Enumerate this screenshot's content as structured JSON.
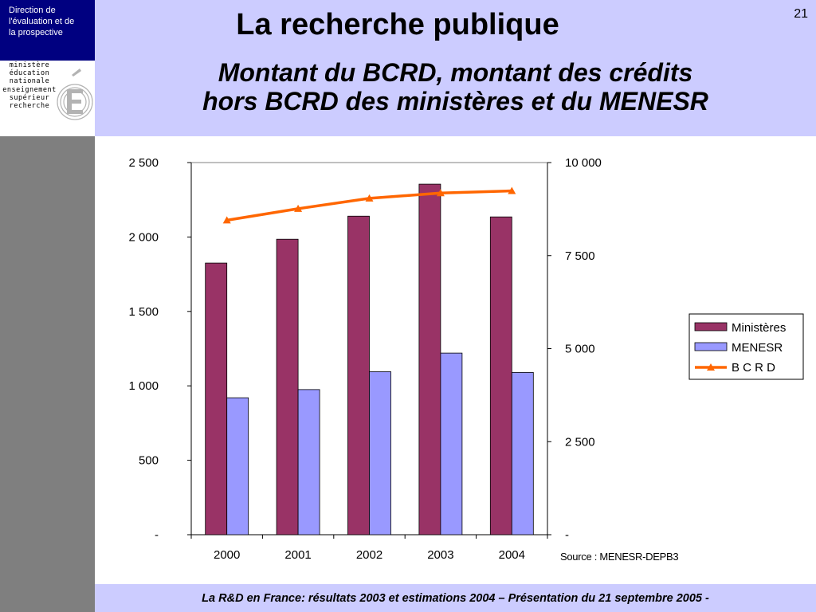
{
  "header": {
    "department": "Direction de\nl'évaluation  et de\nla prospective",
    "logo_text": "ministère\néducation\nnationale\nenseignement\nsupérieur\nrecherche",
    "title": "La recherche publique",
    "subtitle": "Montant du BCRD, montant des crédits\nhors BCRD des ministères et du MENESR",
    "page_number": "21"
  },
  "footer": {
    "text": "La R&D en France: résultats 2003 et estimations 2004 – Présentation du 21 septembre 2005 -"
  },
  "colors": {
    "header_band": "#ccccff",
    "sidebar": "#7f7f7f",
    "department_box": "#000080",
    "series_ministeres": "#993366",
    "series_menesr": "#9999ff",
    "series_bcrd": "#ff6600"
  },
  "chart_data": {
    "type": "bar",
    "categories": [
      "2000",
      "2001",
      "2002",
      "2003",
      "2004"
    ],
    "series": [
      {
        "name": "Ministères",
        "type": "bar",
        "axis": "left",
        "color": "#993366",
        "values": [
          1825,
          1985,
          2140,
          2355,
          2135
        ]
      },
      {
        "name": "MENESR",
        "type": "bar",
        "axis": "left",
        "color": "#9999ff",
        "values": [
          920,
          975,
          1095,
          1220,
          1090
        ]
      },
      {
        "name": "B C R D",
        "type": "line",
        "axis": "right",
        "marker": "triangle",
        "color": "#ff6600",
        "values": [
          8450,
          8760,
          9040,
          9180,
          9240
        ]
      }
    ],
    "y_left": {
      "ylim": [
        0,
        2500
      ],
      "ticks": [
        0,
        500,
        1000,
        1500,
        2000,
        2500
      ],
      "tick_labels": [
        "-",
        "500",
        "1 000",
        "1 500",
        "2 000",
        "2 500"
      ]
    },
    "y_right": {
      "ylim": [
        0,
        10000
      ],
      "ticks": [
        0,
        2500,
        5000,
        7500,
        10000
      ],
      "tick_labels": [
        "-",
        "2 500",
        "5 000",
        "7 500",
        "10 000"
      ]
    },
    "legend_placement": "right",
    "grid": false,
    "source": "Source : MENESR-DEPB3"
  }
}
